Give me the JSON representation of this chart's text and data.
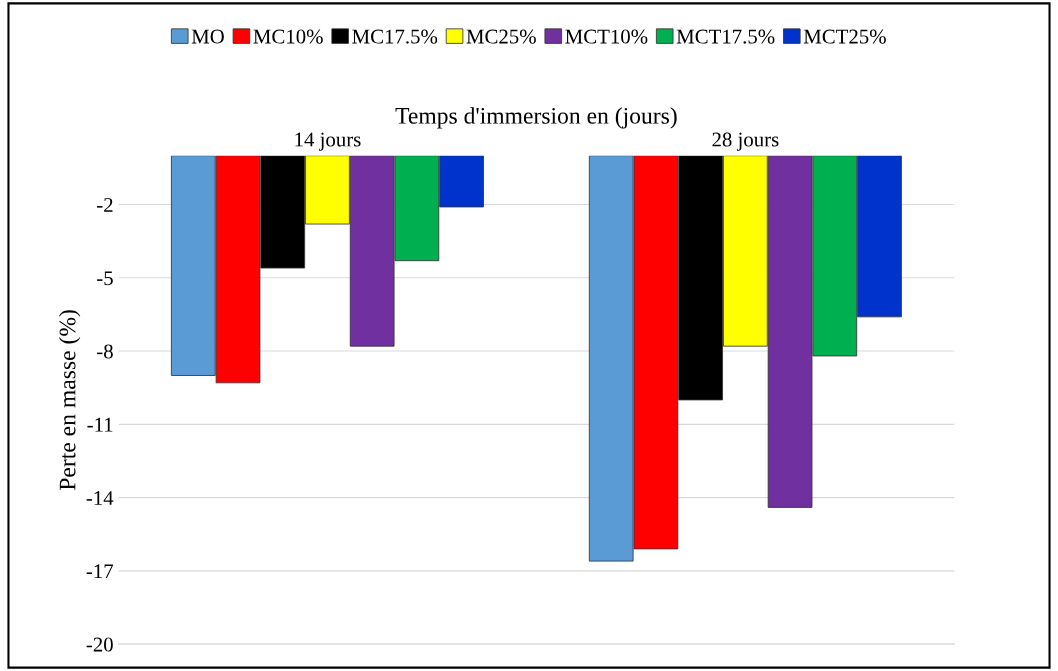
{
  "chart_data": {
    "type": "bar",
    "xlabel": "Temps d'immersion en (jours)",
    "ylabel": "Perte en masse (%)",
    "categories": [
      "14 jours",
      "28 jours"
    ],
    "series": [
      {
        "name": "MO",
        "color": "#5b9bd5",
        "values": [
          -9.0,
          -16.6
        ]
      },
      {
        "name": "MC10%",
        "color": "#ff0000",
        "values": [
          -9.3,
          -16.1
        ]
      },
      {
        "name": "MC17.5%",
        "color": "#000000",
        "values": [
          -4.6,
          -10.0
        ]
      },
      {
        "name": "MC25%",
        "color": "#ffff00",
        "values": [
          -2.8,
          -7.8
        ]
      },
      {
        "name": "MCT10%",
        "color": "#7030a0",
        "values": [
          -7.8,
          -14.4
        ]
      },
      {
        "name": "MCT17.5%",
        "color": "#00b050",
        "values": [
          -4.3,
          -8.2
        ]
      },
      {
        "name": "MCT25%",
        "color": "#0033cc",
        "values": [
          -2.1,
          -6.6
        ]
      }
    ],
    "ylim": [
      -20,
      0
    ],
    "yticks": [
      -2,
      -5,
      -8,
      -11,
      -14,
      -17,
      -20
    ],
    "grid": "y",
    "legend": "top"
  }
}
